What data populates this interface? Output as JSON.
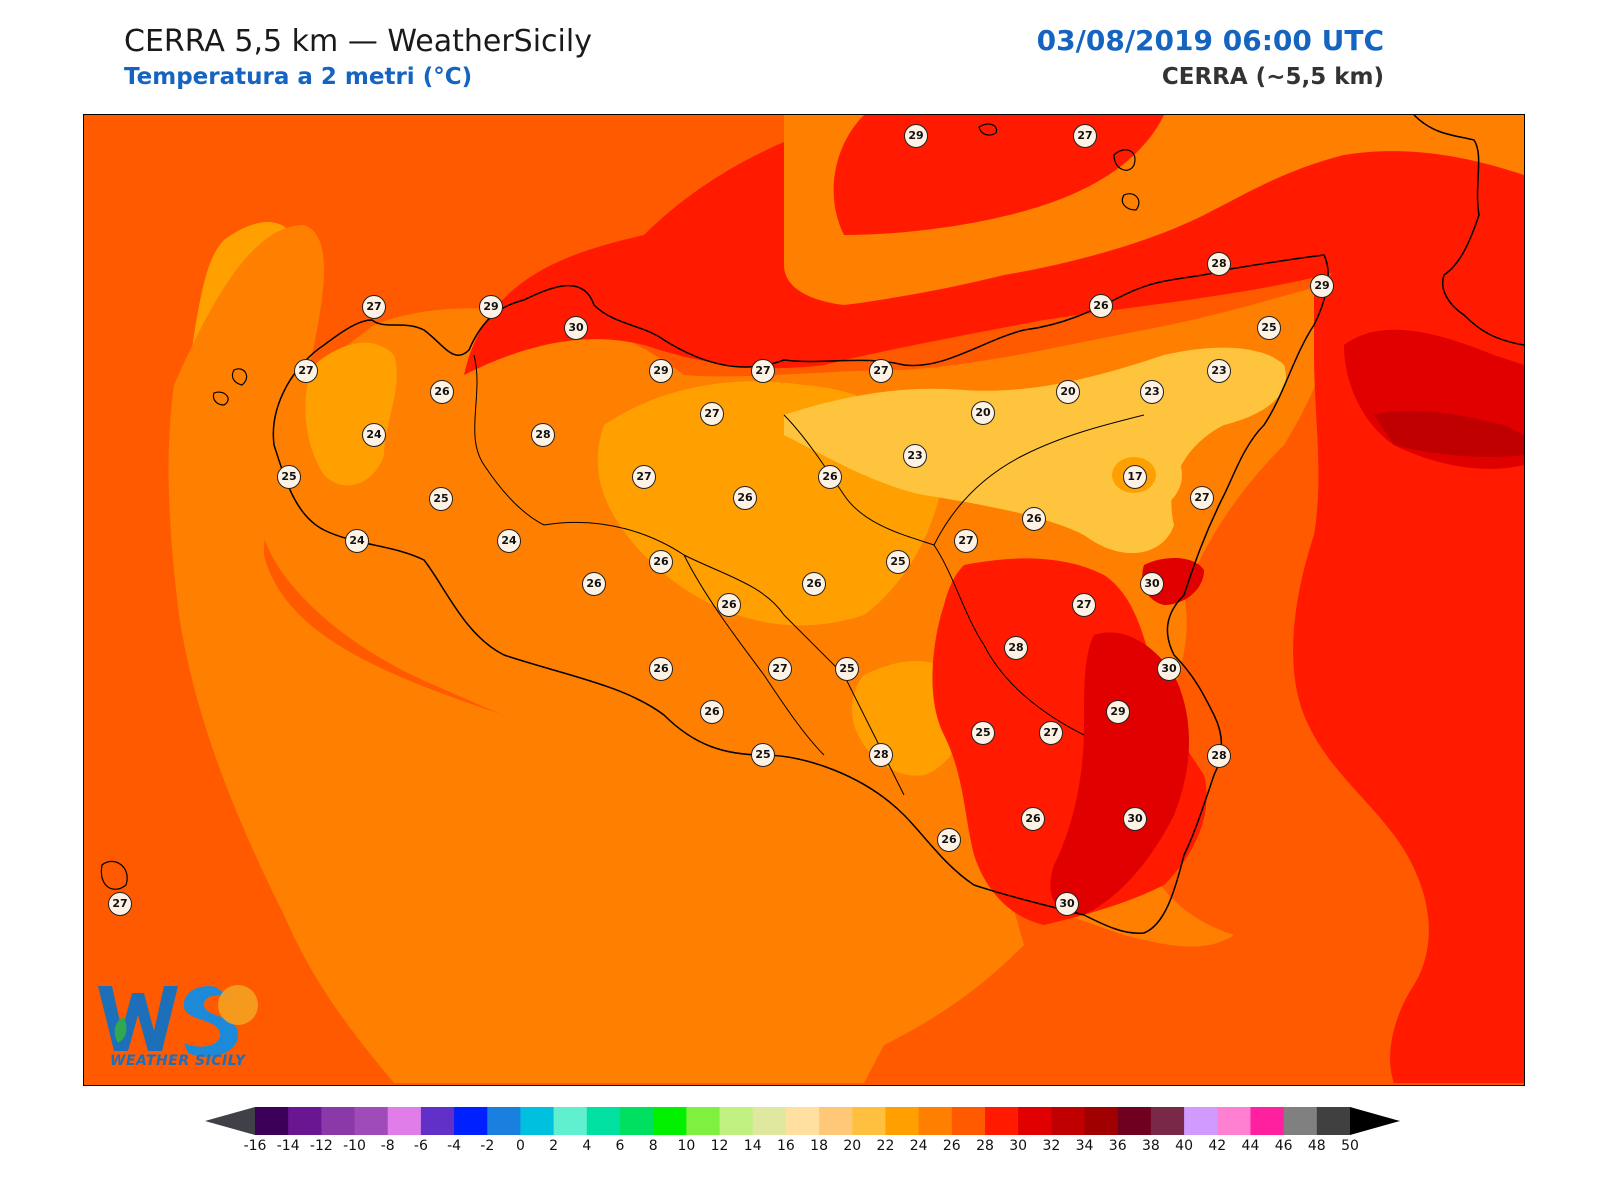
{
  "header": {
    "title_left": "CERRA 5,5 km — WeatherSicily",
    "subtitle_left": "Temperatura a 2 metri (°C)",
    "title_right": "03/08/2019 06:00 UTC",
    "subtitle_right": "CERRA (~5,5 km)"
  },
  "map": {
    "variable": "2 m temperature",
    "units": "°C",
    "colors": {
      "sea_24_26": "#ff5a00",
      "land_26_28": "#ff7f00",
      "land_24_26": "#ffa000",
      "cool_22_24": "#ffc43d",
      "hot_28_30": "#ff1a00",
      "hot_30_32": "#e00000",
      "hot_32_34": "#c00000"
    },
    "stations": [
      {
        "label": "29"
      },
      {
        "label": "27"
      },
      {
        "label": "28"
      },
      {
        "label": "29"
      },
      {
        "label": "26"
      },
      {
        "label": "25"
      },
      {
        "label": "27"
      },
      {
        "label": "29"
      },
      {
        "label": "30"
      },
      {
        "label": "27"
      },
      {
        "label": "29"
      },
      {
        "label": "27"
      },
      {
        "label": "27"
      },
      {
        "label": "23"
      },
      {
        "label": "20"
      },
      {
        "label": "23"
      },
      {
        "label": "20"
      },
      {
        "label": "26"
      },
      {
        "label": "24"
      },
      {
        "label": "28"
      },
      {
        "label": "27"
      },
      {
        "label": "23"
      },
      {
        "label": "17"
      },
      {
        "label": "27"
      },
      {
        "label": "25"
      },
      {
        "label": "25"
      },
      {
        "label": "27"
      },
      {
        "label": "26"
      },
      {
        "label": "26"
      },
      {
        "label": "24"
      },
      {
        "label": "24"
      },
      {
        "label": "26"
      },
      {
        "label": "27"
      },
      {
        "label": "26"
      },
      {
        "label": "25"
      },
      {
        "label": "26"
      },
      {
        "label": "30"
      },
      {
        "label": "27"
      },
      {
        "label": "26"
      },
      {
        "label": "28"
      },
      {
        "label": "26"
      },
      {
        "label": "26"
      },
      {
        "label": "27"
      },
      {
        "label": "25"
      },
      {
        "label": "30"
      },
      {
        "label": "29"
      },
      {
        "label": "26"
      },
      {
        "label": "25"
      },
      {
        "label": "25"
      },
      {
        "label": "27"
      },
      {
        "label": "28"
      },
      {
        "label": "26"
      },
      {
        "label": "30"
      },
      {
        "label": "26"
      },
      {
        "label": "30"
      },
      {
        "label": "28"
      },
      {
        "label": "27"
      }
    ]
  },
  "logo": {
    "text": "WEATHER SICILY",
    "mark": "WS"
  },
  "colorbar": {
    "labels": [
      "-16",
      "-14",
      "-12",
      "-10",
      "-8",
      "-6",
      "-4",
      "-2",
      "0",
      "2",
      "4",
      "6",
      "8",
      "10",
      "12",
      "14",
      "16",
      "18",
      "20",
      "22",
      "24",
      "26",
      "28",
      "30",
      "32",
      "34",
      "36",
      "38",
      "40",
      "42",
      "44",
      "46",
      "48",
      "50"
    ],
    "colors": [
      "#3d0058",
      "#6a1591",
      "#8a3aa8",
      "#a04cb8",
      "#e07de8",
      "#6030c8",
      "#0020ff",
      "#1a80e0",
      "#00c0e0",
      "#60f0d0",
      "#00e0a0",
      "#00e060",
      "#00f000",
      "#80f040",
      "#c0f080",
      "#e0e8a0",
      "#ffe0a0",
      "#ffc878",
      "#ffc040",
      "#ffa000",
      "#ff8000",
      "#ff5a00",
      "#ff1a00",
      "#e00000",
      "#c00000",
      "#a00000",
      "#700020",
      "#7a2848",
      "#d09aff",
      "#ff80d0",
      "#ff20a0",
      "#808080",
      "#404040"
    ],
    "under_color": "#404048",
    "over_color": "#000000"
  }
}
